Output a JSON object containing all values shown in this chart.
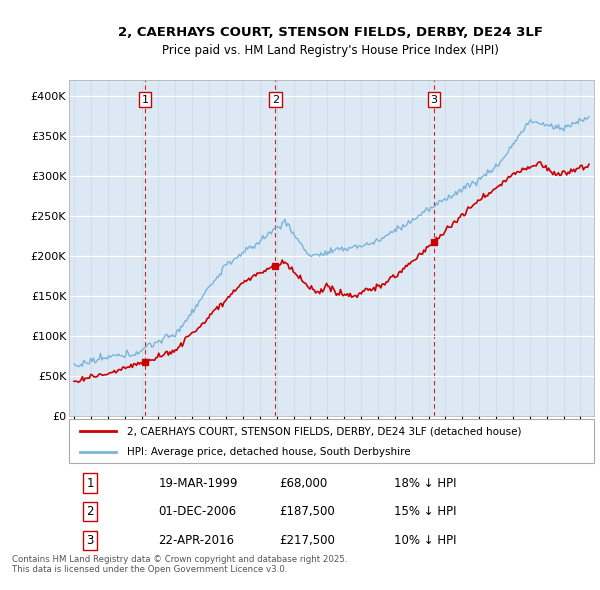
{
  "title_line1": "2, CAERHAYS COURT, STENSON FIELDS, DERBY, DE24 3LF",
  "title_line2": "Price paid vs. HM Land Registry's House Price Index (HPI)",
  "ylim": [
    0,
    420000
  ],
  "yticks": [
    0,
    50000,
    100000,
    150000,
    200000,
    250000,
    300000,
    350000,
    400000
  ],
  "ytick_labels": [
    "£0",
    "£50K",
    "£100K",
    "£150K",
    "£200K",
    "£250K",
    "£300K",
    "£350K",
    "£400K"
  ],
  "plot_bg_color": "#dce9f5",
  "hpi_color": "#7ab3d8",
  "price_color": "#cc0000",
  "vline_color": "#cc0000",
  "sale_dates": [
    1999.21,
    2006.92,
    2016.31
  ],
  "sale_prices": [
    68000,
    187500,
    217500
  ],
  "sale_labels": [
    "1",
    "2",
    "3"
  ],
  "legend_label_price": "2, CAERHAYS COURT, STENSON FIELDS, DERBY, DE24 3LF (detached house)",
  "legend_label_hpi": "HPI: Average price, detached house, South Derbyshire",
  "table_entries": [
    [
      "1",
      "19-MAR-1999",
      "£68,000",
      "18% ↓ HPI"
    ],
    [
      "2",
      "01-DEC-2006",
      "£187,500",
      "15% ↓ HPI"
    ],
    [
      "3",
      "22-APR-2016",
      "£217,500",
      "10% ↓ HPI"
    ]
  ],
  "footer": "Contains HM Land Registry data © Crown copyright and database right 2025.\nThis data is licensed under the Open Government Licence v3.0."
}
